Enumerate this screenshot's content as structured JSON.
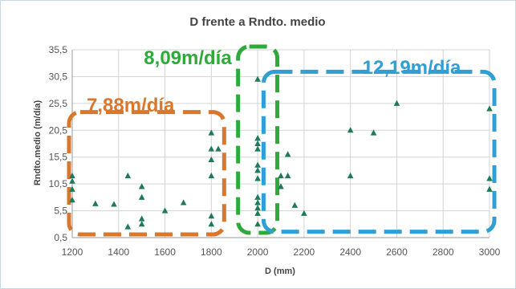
{
  "chart_data": {
    "type": "scatter",
    "title": "D frente a Rndto. medio",
    "xlabel": "D (mm)",
    "ylabel": "Rndto.medio (m/día)",
    "xlim": [
      1200,
      3000
    ],
    "ylim": [
      0.5,
      35.5
    ],
    "x_ticks": [
      1200,
      1400,
      1600,
      1800,
      2000,
      2200,
      2400,
      2600,
      2800,
      3000
    ],
    "y_ticks": [
      0.5,
      5.5,
      10.5,
      15.5,
      20.5,
      25.5,
      30.5,
      35.5
    ],
    "x_tick_labels": [
      "1200",
      "1400",
      "1600",
      "1800",
      "2000",
      "2200",
      "2400",
      "2600",
      "2800",
      "3000"
    ],
    "y_tick_labels": [
      "0,5",
      "5,5",
      "10,5",
      "15,5",
      "20,5",
      "25,5",
      "30,5",
      "35,5"
    ],
    "grid": true,
    "marker": "triangle",
    "marker_color": "#1f7a5a",
    "points": [
      [
        1200,
        12.0
      ],
      [
        1200,
        11.0
      ],
      [
        1200,
        9.5
      ],
      [
        1200,
        7.5
      ],
      [
        1300,
        6.8
      ],
      [
        1380,
        6.7
      ],
      [
        1440,
        12.0
      ],
      [
        1440,
        2.5
      ],
      [
        1500,
        10.0
      ],
      [
        1500,
        8.0
      ],
      [
        1500,
        4.0
      ],
      [
        1500,
        3.0
      ],
      [
        1600,
        5.5
      ],
      [
        1680,
        7.0
      ],
      [
        1800,
        20.0
      ],
      [
        1800,
        17.0
      ],
      [
        1800,
        15.0
      ],
      [
        1800,
        12.0
      ],
      [
        1800,
        4.5
      ],
      [
        1800,
        3.0
      ],
      [
        1830,
        17.0
      ],
      [
        2000,
        30.0
      ],
      [
        2000,
        19.0
      ],
      [
        2000,
        18.0
      ],
      [
        2000,
        17.0
      ],
      [
        2000,
        14.0
      ],
      [
        2000,
        13.0
      ],
      [
        2000,
        11.5
      ],
      [
        2000,
        8.0
      ],
      [
        2000,
        7.0
      ],
      [
        2000,
        6.0
      ],
      [
        2000,
        5.0
      ],
      [
        2000,
        3.0
      ],
      [
        2100,
        12.0
      ],
      [
        2100,
        10.0
      ],
      [
        2130,
        16.0
      ],
      [
        2130,
        12.0
      ],
      [
        2160,
        6.5
      ],
      [
        2200,
        5.0
      ],
      [
        2400,
        20.5
      ],
      [
        2400,
        12.0
      ],
      [
        2500,
        20.0
      ],
      [
        2600,
        25.5
      ],
      [
        3000,
        24.5
      ],
      [
        3000,
        11.5
      ],
      [
        3000,
        9.5
      ]
    ],
    "annotations": [
      {
        "text": "7,88m/día",
        "color": "#d9772c"
      },
      {
        "text": "8,09m/día",
        "color": "#2eaa3a"
      },
      {
        "text": "12,19m/día",
        "color": "#2f9fd4"
      }
    ],
    "groups": [
      {
        "label": "7,88m/día",
        "x_range": [
          1200,
          1800
        ],
        "y_range": [
          0.5,
          23.0
        ],
        "color": "#d9772c"
      },
      {
        "label": "8,09m/día",
        "x_range": [
          1950,
          2050
        ],
        "y_range": [
          0.5,
          35.5
        ],
        "color": "#2eaa3a"
      },
      {
        "label": "12,19m/día",
        "x_range": [
          2060,
          3000
        ],
        "y_range": [
          2.5,
          30.5
        ],
        "color": "#2f9fd4"
      }
    ]
  }
}
